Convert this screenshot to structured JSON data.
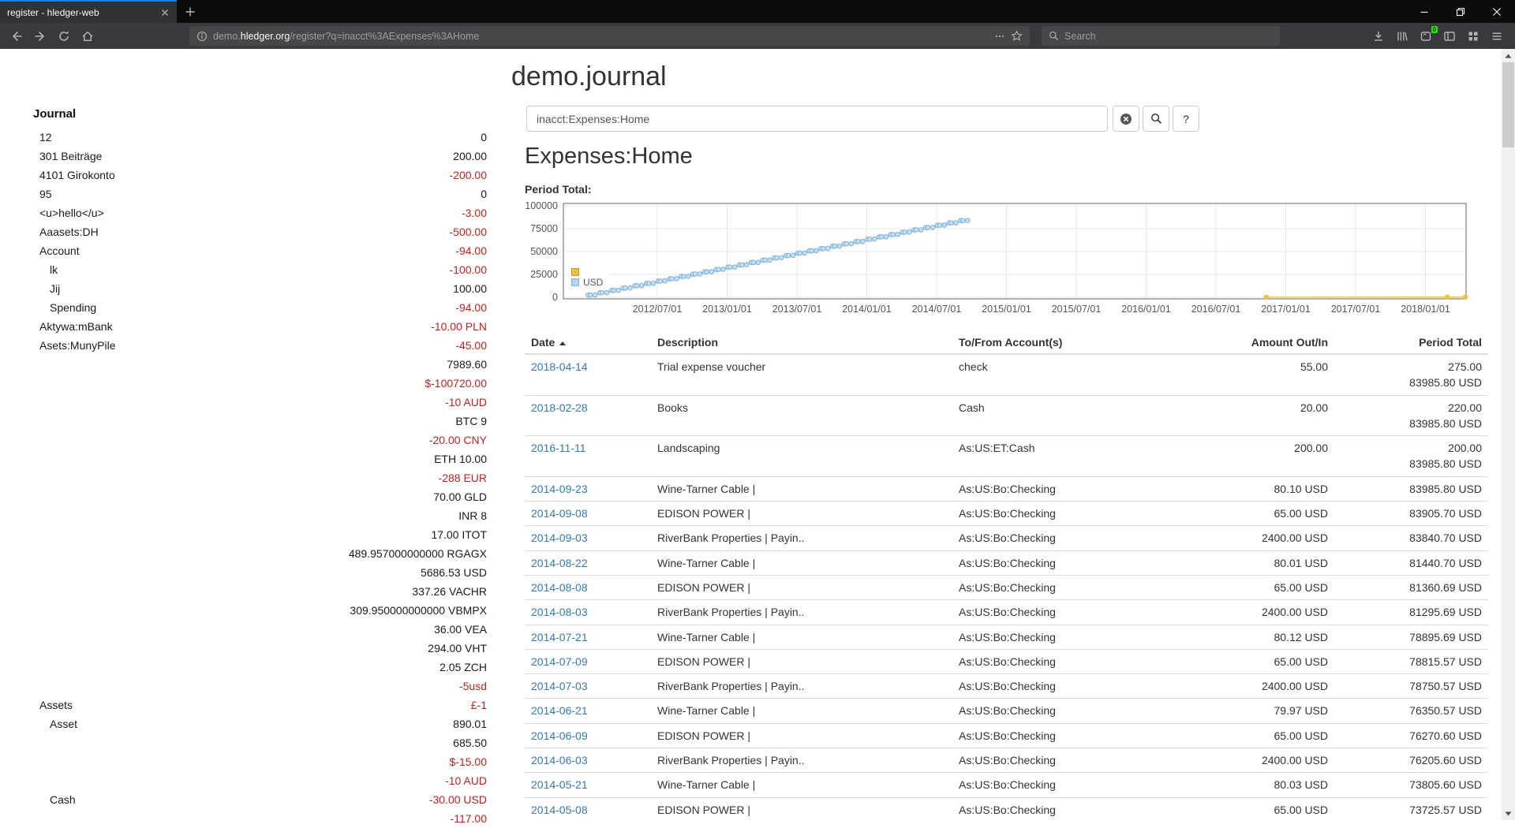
{
  "browser": {
    "tab_title": "register - hledger-web",
    "url_subdomain": "demo.",
    "url_domain": "hledger.org",
    "url_path": "/register?q=inacct%3AExpenses%3AHome",
    "search_placeholder": "Search",
    "extension_badge": "0"
  },
  "page": {
    "title": "demo.journal",
    "sidebar": {
      "heading": "Journal",
      "rows": [
        {
          "label": "12",
          "value": "0",
          "neg": false,
          "depth": 1
        },
        {
          "label": "301 Beiträge",
          "value": "200.00",
          "neg": false,
          "depth": 1
        },
        {
          "label": "4101 Girokonto",
          "value": "-200.00",
          "neg": true,
          "depth": 1
        },
        {
          "label": "95",
          "value": "0",
          "neg": false,
          "depth": 1
        },
        {
          "label": "<u>hello</u>",
          "value": "-3.00",
          "neg": true,
          "depth": 1
        },
        {
          "label": "Aaasets:DH",
          "value": "-500.00",
          "neg": true,
          "depth": 1
        },
        {
          "label": "Account",
          "value": "-94.00",
          "neg": true,
          "depth": 1
        },
        {
          "label": "lk",
          "value": "-100.00",
          "neg": true,
          "depth": 2
        },
        {
          "label": "Jij",
          "value": "100.00",
          "neg": false,
          "depth": 2
        },
        {
          "label": "Spending",
          "value": "-94.00",
          "neg": true,
          "depth": 2
        },
        {
          "label": "Aktywa:mBank",
          "value": "-10.00 PLN",
          "neg": true,
          "depth": 1
        },
        {
          "label": "Asets:MunyPile",
          "value": "-45.00",
          "neg": true,
          "depth": 1
        },
        {
          "label": "",
          "value": "7989.60",
          "neg": false,
          "depth": 1
        },
        {
          "label": "",
          "value": "$-100720.00",
          "neg": true,
          "depth": 1
        },
        {
          "label": "",
          "value": "-10 AUD",
          "neg": true,
          "depth": 1
        },
        {
          "label": "",
          "value": "BTC 9",
          "neg": false,
          "depth": 1
        },
        {
          "label": "",
          "value": "-20.00 CNY",
          "neg": true,
          "depth": 1
        },
        {
          "label": "",
          "value": "ETH 10.00",
          "neg": false,
          "depth": 1
        },
        {
          "label": "",
          "value": "-288 EUR",
          "neg": true,
          "depth": 1
        },
        {
          "label": "",
          "value": "70.00 GLD",
          "neg": false,
          "depth": 1
        },
        {
          "label": "",
          "value": "INR 8",
          "neg": false,
          "depth": 1
        },
        {
          "label": "",
          "value": "17.00 ITOT",
          "neg": false,
          "depth": 1
        },
        {
          "label": "",
          "value": "489.957000000000 RGAGX",
          "neg": false,
          "depth": 1
        },
        {
          "label": "",
          "value": "5686.53 USD",
          "neg": false,
          "depth": 1
        },
        {
          "label": "",
          "value": "337.26 VACHR",
          "neg": false,
          "depth": 1
        },
        {
          "label": "",
          "value": "309.950000000000 VBMPX",
          "neg": false,
          "depth": 1
        },
        {
          "label": "",
          "value": "36.00 VEA",
          "neg": false,
          "depth": 1
        },
        {
          "label": "",
          "value": "294.00 VHT",
          "neg": false,
          "depth": 1
        },
        {
          "label": "",
          "value": "2.05 ZCH",
          "neg": false,
          "depth": 1
        },
        {
          "label": "",
          "value": "-5usd",
          "neg": true,
          "depth": 1
        },
        {
          "label": "Assets",
          "value": "£-1",
          "neg": true,
          "depth": 1
        },
        {
          "label": "Asset",
          "value": "890.01",
          "neg": false,
          "depth": 2
        },
        {
          "label": "",
          "value": "685.50",
          "neg": false,
          "depth": 2
        },
        {
          "label": "",
          "value": "$-15.00",
          "neg": true,
          "depth": 2
        },
        {
          "label": "",
          "value": "-10 AUD",
          "neg": true,
          "depth": 2
        },
        {
          "label": "Cash",
          "value": "-30.00 USD",
          "neg": true,
          "depth": 2
        },
        {
          "label": "",
          "value": "-117.00",
          "neg": true,
          "depth": 2
        }
      ]
    },
    "query": {
      "value": "inacct:Expenses:Home",
      "help_label": "?"
    },
    "register": {
      "heading": "Expenses:Home",
      "period_total_label": "Period Total:",
      "columns": [
        "Date",
        "Description",
        "To/From Account(s)",
        "Amount Out/In",
        "Period Total"
      ],
      "rows": [
        {
          "date": "2018-04-14",
          "description": "Trial expense voucher",
          "account": "check",
          "amount": "55.00",
          "total": "275.00",
          "total2": "83985.80 USD"
        },
        {
          "date": "2018-02-28",
          "description": "Books",
          "account": "Cash",
          "amount": "20.00",
          "total": "220.00",
          "total2": "83985.80 USD"
        },
        {
          "date": "2016-11-11",
          "description": "Landscaping",
          "account": "As:US:ET:Cash",
          "amount": "200.00",
          "total": "200.00",
          "total2": "83985.80 USD"
        },
        {
          "date": "2014-09-23",
          "description": "Wine-Tarner Cable |",
          "account": "As:US:Bo:Checking",
          "amount": "80.10 USD",
          "total": "83985.80 USD"
        },
        {
          "date": "2014-09-08",
          "description": "EDISON POWER |",
          "account": "As:US:Bo:Checking",
          "amount": "65.00 USD",
          "total": "83905.70 USD"
        },
        {
          "date": "2014-09-03",
          "description": "RiverBank Properties | Payin..",
          "account": "As:US:Bo:Checking",
          "amount": "2400.00 USD",
          "total": "83840.70 USD"
        },
        {
          "date": "2014-08-22",
          "description": "Wine-Tarner Cable |",
          "account": "As:US:Bo:Checking",
          "amount": "80.01 USD",
          "total": "81440.70 USD"
        },
        {
          "date": "2014-08-08",
          "description": "EDISON POWER |",
          "account": "As:US:Bo:Checking",
          "amount": "65.00 USD",
          "total": "81360.69 USD"
        },
        {
          "date": "2014-08-03",
          "description": "RiverBank Properties | Payin..",
          "account": "As:US:Bo:Checking",
          "amount": "2400.00 USD",
          "total": "81295.69 USD"
        },
        {
          "date": "2014-07-21",
          "description": "Wine-Tarner Cable |",
          "account": "As:US:Bo:Checking",
          "amount": "80.12 USD",
          "total": "78895.69 USD"
        },
        {
          "date": "2014-07-09",
          "description": "EDISON POWER |",
          "account": "As:US:Bo:Checking",
          "amount": "65.00 USD",
          "total": "78815.57 USD"
        },
        {
          "date": "2014-07-03",
          "description": "RiverBank Properties | Payin..",
          "account": "As:US:Bo:Checking",
          "amount": "2400.00 USD",
          "total": "78750.57 USD"
        },
        {
          "date": "2014-06-21",
          "description": "Wine-Tarner Cable |",
          "account": "As:US:Bo:Checking",
          "amount": "79.97 USD",
          "total": "76350.57 USD"
        },
        {
          "date": "2014-06-09",
          "description": "EDISON POWER |",
          "account": "As:US:Bo:Checking",
          "amount": "65.00 USD",
          "total": "76270.60 USD"
        },
        {
          "date": "2014-06-03",
          "description": "RiverBank Properties | Payin..",
          "account": "As:US:Bo:Checking",
          "amount": "2400.00 USD",
          "total": "76205.60 USD"
        },
        {
          "date": "2014-05-21",
          "description": "Wine-Tarner Cable |",
          "account": "As:US:Bo:Checking",
          "amount": "80.03 USD",
          "total": "73805.60 USD"
        },
        {
          "date": "2014-05-08",
          "description": "EDISON POWER |",
          "account": "As:US:Bo:Checking",
          "amount": "65.00 USD",
          "total": "73725.57 USD"
        }
      ]
    }
  },
  "chart_data": {
    "type": "line",
    "title": "Period Total:",
    "xlabel": "",
    "ylabel": "",
    "ylim": [
      0,
      100000
    ],
    "yticks": [
      "0",
      "25000",
      "50000",
      "75000",
      "100000"
    ],
    "xticks": [
      "2012/07/01",
      "2013/01/01",
      "2013/07/01",
      "2014/01/01",
      "2014/07/01",
      "2015/01/01",
      "2015/07/01",
      "2016/01/01",
      "2016/07/01",
      "2017/01/01",
      "2017/07/01",
      "2018/01/01"
    ],
    "grid": true,
    "legend": [
      {
        "label": "",
        "color": "#edc240"
      },
      {
        "label": "USD",
        "color": "#afd8f8"
      }
    ],
    "series": [
      {
        "name": "",
        "color": "#edc240",
        "fill": "#edc240",
        "points": [
          [
            "2016-11-11",
            200.0
          ],
          [
            "2018-02-28",
            220.0
          ],
          [
            "2018-04-14",
            275.0
          ]
        ]
      },
      {
        "name": "USD",
        "color": "#7fb0d8",
        "fill": "#c6dff2",
        "month_days": [
          3,
          9,
          21
        ],
        "months": [
          [
            "2012-01",
            2400.8,
            2465.8,
            2545.8
          ],
          [
            "2012-02",
            4945.8,
            5010.8,
            5090.8
          ],
          [
            "2012-03",
            7490.8,
            7555.8,
            7635.8
          ],
          [
            "2012-04",
            10035.8,
            10100.8,
            10180.8
          ],
          [
            "2012-05",
            12580.8,
            12645.8,
            12725.8
          ],
          [
            "2012-06",
            15125.8,
            15190.8,
            15270.8
          ],
          [
            "2012-07",
            17670.8,
            17735.8,
            17815.8
          ],
          [
            "2012-08",
            20215.8,
            20280.8,
            20360.8
          ],
          [
            "2012-09",
            22760.8,
            22825.8,
            22905.8
          ],
          [
            "2012-10",
            25305.8,
            25370.8,
            25450.8
          ],
          [
            "2012-11",
            27850.8,
            27915.8,
            27995.8
          ],
          [
            "2012-12",
            30395.8,
            30460.8,
            30540.8
          ],
          [
            "2013-01",
            32940.8,
            33005.8,
            33085.8
          ],
          [
            "2013-02",
            35485.8,
            35550.8,
            35630.8
          ],
          [
            "2013-03",
            38030.8,
            38095.8,
            38175.8
          ],
          [
            "2013-04",
            40575.8,
            40640.8,
            40720.8
          ],
          [
            "2013-05",
            43120.8,
            43185.8,
            43265.8
          ],
          [
            "2013-06",
            45665.8,
            45730.8,
            45810.8
          ],
          [
            "2013-07",
            48210.8,
            48275.8,
            48355.8
          ],
          [
            "2013-08",
            50755.8,
            50820.8,
            50900.8
          ],
          [
            "2013-09",
            53300.8,
            53365.8,
            53445.8
          ],
          [
            "2013-10",
            55845.8,
            55910.8,
            55990.8
          ],
          [
            "2013-11",
            58390.8,
            58455.8,
            58535.8
          ],
          [
            "2013-12",
            60935.8,
            61000.8,
            61080.8
          ],
          [
            "2014-01",
            63480.8,
            63545.8,
            63625.8
          ],
          [
            "2014-02",
            66025.8,
            66090.8,
            66170.8
          ],
          [
            "2014-03",
            68570.8,
            68635.8,
            68715.8
          ],
          [
            "2014-04",
            71115.8,
            71180.8,
            71260.8
          ],
          [
            "2014-05",
            73660.57,
            73725.57,
            73805.6
          ],
          [
            "2014-06",
            76205.6,
            76270.6,
            76350.57
          ],
          [
            "2014-07",
            78750.57,
            78815.57,
            78895.69
          ],
          [
            "2014-08",
            81295.69,
            81360.69,
            81440.7
          ],
          [
            "2014-09",
            83840.7,
            83905.7,
            83985.8
          ]
        ]
      }
    ]
  }
}
